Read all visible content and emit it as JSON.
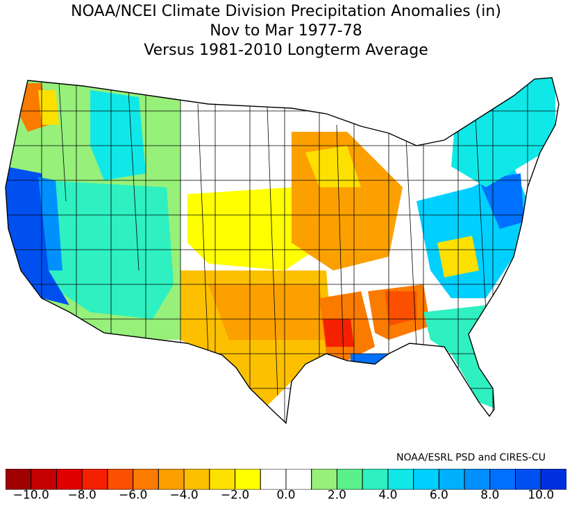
{
  "title": {
    "line1": "NOAA/NCEI Climate Division Precipitation Anomalies (in)",
    "line2": "Nov to Mar 1977-78",
    "line3": "Versus 1981-2010 Longterm Average"
  },
  "credit": "NOAA/ESRL PSD and CIRES-CU",
  "map_region": "Contiguous United States climate divisions",
  "legend": {
    "unit": "in",
    "bins": [
      {
        "from": -11.0,
        "to": -10.0,
        "color": "#a00000"
      },
      {
        "from": -10.0,
        "to": -9.0,
        "color": "#c40000"
      },
      {
        "from": -9.0,
        "to": -8.0,
        "color": "#e00000"
      },
      {
        "from": -8.0,
        "to": -7.0,
        "color": "#f42000"
      },
      {
        "from": -7.0,
        "to": -6.0,
        "color": "#fa5000"
      },
      {
        "from": -6.0,
        "to": -5.0,
        "color": "#fb7a00"
      },
      {
        "from": -5.0,
        "to": -4.0,
        "color": "#fca000"
      },
      {
        "from": -4.0,
        "to": -3.0,
        "color": "#fcc000"
      },
      {
        "from": -3.0,
        "to": -2.0,
        "color": "#fde000"
      },
      {
        "from": -2.0,
        "to": -1.0,
        "color": "#ffff00"
      },
      {
        "from": -1.0,
        "to": 0.0,
        "color": "#ffffff"
      },
      {
        "from": 0.0,
        "to": 1.0,
        "color": "#ffffff"
      },
      {
        "from": 1.0,
        "to": 2.0,
        "color": "#96f07a"
      },
      {
        "from": 2.0,
        "to": 3.0,
        "color": "#5af08c"
      },
      {
        "from": 3.0,
        "to": 4.0,
        "color": "#2ef0c0"
      },
      {
        "from": 4.0,
        "to": 5.0,
        "color": "#10e8e8"
      },
      {
        "from": 5.0,
        "to": 6.0,
        "color": "#00d0ff"
      },
      {
        "from": 6.0,
        "to": 7.0,
        "color": "#00b0ff"
      },
      {
        "from": 7.0,
        "to": 8.0,
        "color": "#0090ff"
      },
      {
        "from": 8.0,
        "to": 9.0,
        "color": "#0070ff"
      },
      {
        "from": 9.0,
        "to": 10.0,
        "color": "#0050f0"
      },
      {
        "from": 10.0,
        "to": 11.0,
        "color": "#0030e0"
      }
    ],
    "tick_labels": [
      "-10.0",
      "-8.0",
      "-6.0",
      "-4.0",
      "-2.0",
      "0.0",
      "2.0",
      "4.0",
      "6.0",
      "8.0",
      "10.0"
    ],
    "tick_values": [
      -10,
      -8,
      -6,
      -4,
      -2,
      0,
      2,
      4,
      6,
      8,
      10
    ]
  },
  "anomaly_regions": [
    {
      "region": "Pacific coast California",
      "anomaly": 9.5
    },
    {
      "region": "Western Washington coast",
      "anomaly": -5.5
    },
    {
      "region": "Puget Sound",
      "anomaly": -2.5
    },
    {
      "region": "Interior Northwest",
      "anomaly": 2.5
    },
    {
      "region": "Idaho panhandle",
      "anomaly": 4.5
    },
    {
      "region": "Great Basin",
      "anomaly": 2.5
    },
    {
      "region": "Southern California desert",
      "anomaly": 4.5
    },
    {
      "region": "Arizona",
      "anomaly": 3.5
    },
    {
      "region": "Northern Plains",
      "anomaly": 0.0
    },
    {
      "region": "Central Plains",
      "anomaly": -1.5
    },
    {
      "region": "Texas and Oklahoma",
      "anomaly": -4.5
    },
    {
      "region": "Midwest",
      "anomaly": -3.5
    },
    {
      "region": "Lower Mississippi Valley",
      "anomaly": -8.5
    },
    {
      "region": "Alabama and Georgia",
      "anomaly": -6.5
    },
    {
      "region": "Southeast Louisiana coast",
      "anomaly": 7.5
    },
    {
      "region": "Florida",
      "anomaly": 3.5
    },
    {
      "region": "Mid-Atlantic",
      "anomaly": 6.5
    },
    {
      "region": "New Jersey coast",
      "anomaly": 8.5
    },
    {
      "region": "New England",
      "anomaly": 4.5
    }
  ]
}
